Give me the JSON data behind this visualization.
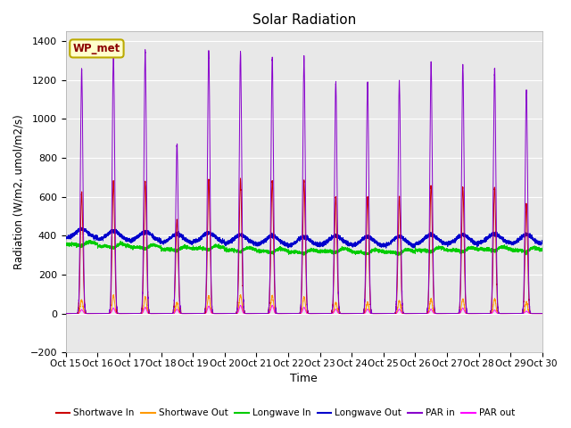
{
  "title": "Solar Radiation",
  "xlabel": "Time",
  "ylabel": "Radiation (W/m2, umol/m2/s)",
  "xlim": [
    0,
    15
  ],
  "ylim": [
    -200,
    1450
  ],
  "yticks": [
    -200,
    0,
    200,
    400,
    600,
    800,
    1000,
    1200,
    1400
  ],
  "xtick_labels": [
    "Oct 15",
    "Oct 16",
    "Oct 17",
    "Oct 18",
    "Oct 19",
    "Oct 20",
    "Oct 21",
    "Oct 22",
    "Oct 23",
    "Oct 24",
    "Oct 25",
    "Oct 26",
    "Oct 27",
    "Oct 28",
    "Oct 29",
    "Oct 30"
  ],
  "num_days": 15,
  "background_color": "#e8e8e8",
  "fig_background": "#ffffff",
  "legend_label": "WP_met",
  "series_colors": {
    "shortwave_in": "#cc0000",
    "shortwave_out": "#ff9900",
    "longwave_in": "#00cc00",
    "longwave_out": "#0000cc",
    "par_in": "#8800cc",
    "par_out": "#ff00ff"
  },
  "series_labels": {
    "shortwave_in": "Shortwave In",
    "shortwave_out": "Shortwave Out",
    "longwave_in": "Longwave In",
    "longwave_out": "Longwave Out",
    "par_in": "PAR in",
    "par_out": "PAR out"
  },
  "par_in_peaks": [
    1260,
    1350,
    1350,
    870,
    1350,
    1350,
    1310,
    1320,
    1190,
    1190,
    1195,
    1285,
    1280,
    1260,
    1145
  ],
  "sw_in_peaks": [
    620,
    680,
    680,
    480,
    690,
    690,
    680,
    680,
    600,
    600,
    600,
    660,
    650,
    650,
    560
  ],
  "sw_out_peaks": [
    70,
    90,
    85,
    55,
    90,
    95,
    90,
    85,
    55,
    55,
    65,
    75,
    75,
    75,
    60
  ],
  "par_out_peaks": [
    20,
    28,
    32,
    22,
    38,
    42,
    42,
    32,
    22,
    22,
    22,
    22,
    28,
    18,
    12
  ],
  "lw_in_base": [
    365,
    355,
    350,
    340,
    345,
    335,
    330,
    325,
    330,
    325,
    325,
    335,
    335,
    340,
    335
  ],
  "lw_out_base": [
    405,
    395,
    390,
    380,
    385,
    375,
    370,
    365,
    370,
    365,
    365,
    375,
    375,
    380,
    375
  ]
}
